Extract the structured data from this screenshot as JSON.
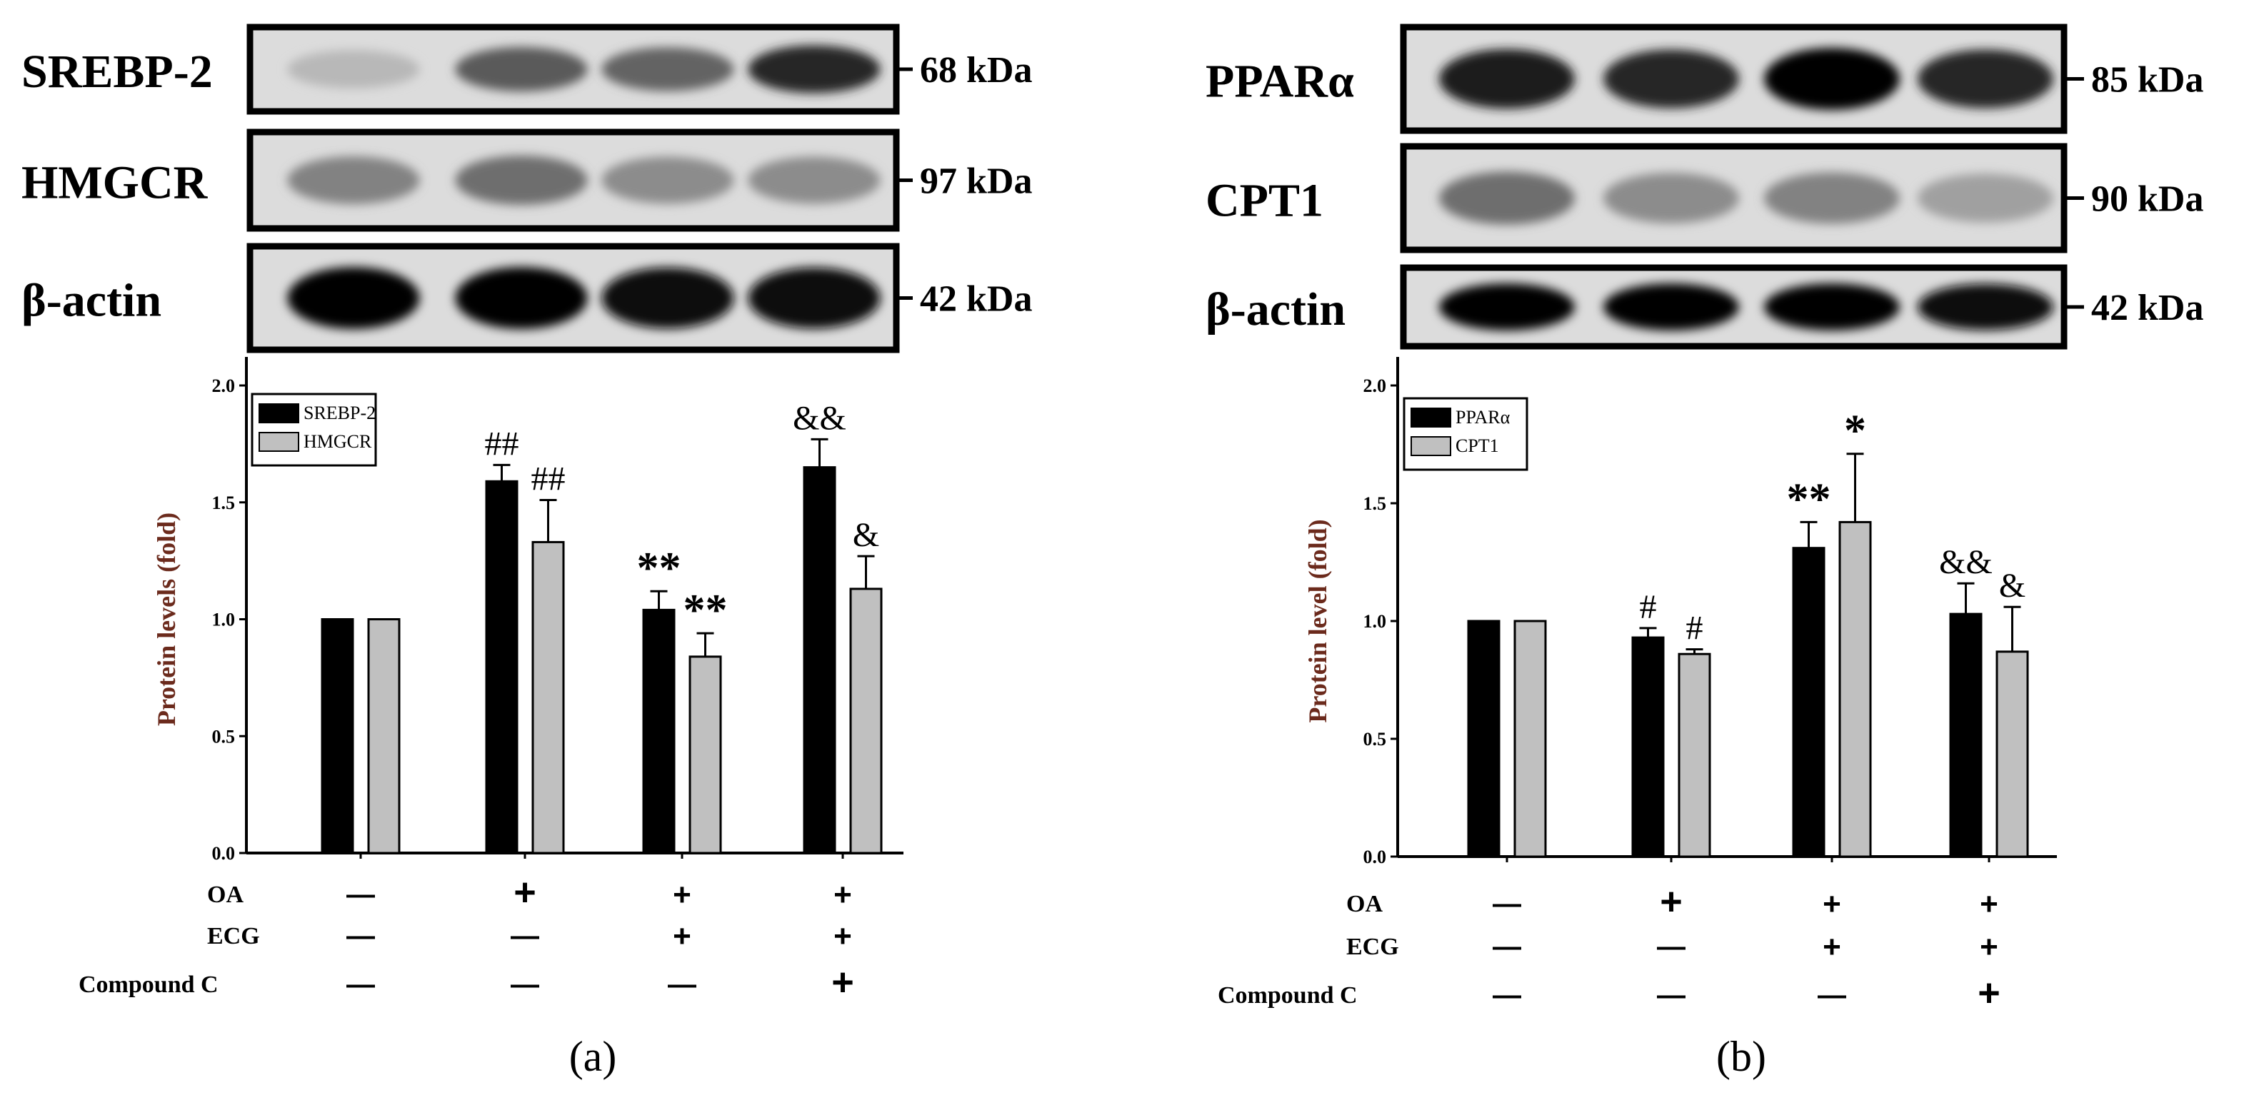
{
  "colors": {
    "series_1": "#000000",
    "series_2": "#c0c0c0",
    "ylabel": "#6b2a1c"
  },
  "panels": [
    {
      "panel_label": "(a)",
      "blots": [
        {
          "label": "SREBP-2",
          "kda": "68 kDa",
          "bands": [
            0.08,
            0.55,
            0.5,
            0.8
          ]
        },
        {
          "label": "HMGCR",
          "kda": "97 kDa",
          "bands": [
            0.35,
            0.45,
            0.3,
            0.3
          ]
        },
        {
          "label": "β-actin",
          "kda": "42 kDa",
          "bands": [
            1.0,
            1.0,
            0.95,
            0.95
          ]
        }
      ],
      "treatments": [
        {
          "label": "OA",
          "signs": [
            "—",
            "+",
            "+",
            "+"
          ]
        },
        {
          "label": "ECG",
          "signs": [
            "—",
            "—",
            "+",
            "+"
          ]
        },
        {
          "label": "Compound C",
          "signs": [
            "—",
            "—",
            "—",
            "+"
          ]
        }
      ]
    },
    {
      "panel_label": "(b)",
      "blots": [
        {
          "label": "PPARα",
          "kda": "85 kDa",
          "bands": [
            0.85,
            0.8,
            1.0,
            0.8
          ]
        },
        {
          "label": "CPT1",
          "kda": "90 kDa",
          "bands": [
            0.45,
            0.3,
            0.35,
            0.2
          ]
        },
        {
          "label": "β-actin",
          "kda": "42 kDa",
          "bands": [
            1.0,
            1.0,
            1.0,
            0.95
          ]
        }
      ],
      "treatments": [
        {
          "label": "OA",
          "signs": [
            "—",
            "+",
            "+",
            "+"
          ]
        },
        {
          "label": "ECG",
          "signs": [
            "—",
            "—",
            "+",
            "+"
          ]
        },
        {
          "label": "Compound C",
          "signs": [
            "—",
            "—",
            "—",
            "+"
          ]
        }
      ]
    }
  ],
  "chart_data": [
    {
      "type": "bar",
      "categories": [
        "1",
        "2",
        "3",
        "4"
      ],
      "ylabel": "Protein levels (fold)",
      "ylim": [
        0,
        2.0
      ],
      "yticks": [
        "0.0",
        "0.5",
        "1.0",
        "1.5",
        "2.0"
      ],
      "legend_position": "top-left",
      "series": [
        {
          "name": "SREBP-2",
          "values": [
            1.0,
            1.59,
            1.04,
            1.65
          ],
          "errors": [
            0,
            0.07,
            0.08,
            0.12
          ],
          "annotations": [
            "",
            "##",
            "**",
            "&&"
          ]
        },
        {
          "name": "HMGCR",
          "values": [
            1.0,
            1.33,
            0.84,
            1.13
          ],
          "errors": [
            0,
            0.18,
            0.1,
            0.14
          ],
          "annotations": [
            "",
            "##",
            "**",
            "&"
          ]
        }
      ]
    },
    {
      "type": "bar",
      "categories": [
        "1",
        "2",
        "3",
        "4"
      ],
      "ylabel": "Protein level (fold)",
      "ylim": [
        0,
        2.0
      ],
      "yticks": [
        "0.0",
        "0.5",
        "1.0",
        "1.5",
        "2.0"
      ],
      "legend_position": "top-left",
      "series": [
        {
          "name": "PPARα",
          "values": [
            1.0,
            0.93,
            1.31,
            1.03
          ],
          "errors": [
            0,
            0.04,
            0.11,
            0.13
          ],
          "annotations": [
            "",
            "#",
            "**",
            "&&"
          ]
        },
        {
          "name": "CPT1",
          "values": [
            1.0,
            0.86,
            1.42,
            0.87
          ],
          "errors": [
            0,
            0.02,
            0.29,
            0.19
          ],
          "annotations": [
            "",
            "#",
            "*",
            "&"
          ]
        }
      ]
    }
  ]
}
